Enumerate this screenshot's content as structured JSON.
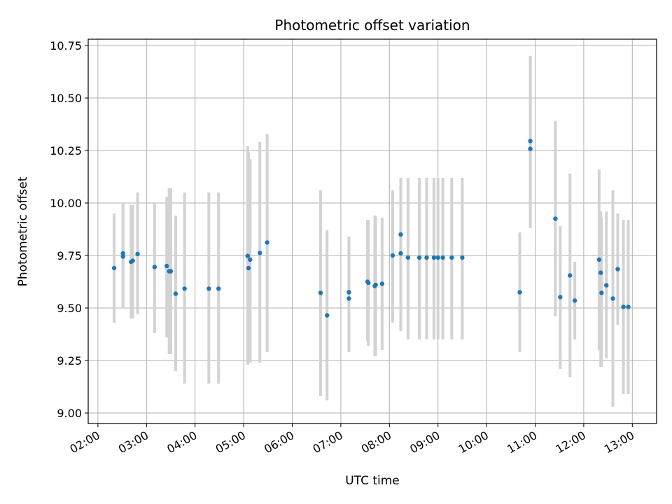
{
  "chart_data": {
    "type": "scatter",
    "title": "Photometric offset variation",
    "xlabel": "UTC time",
    "ylabel": "Photometric offset",
    "xlim": [
      "01:48",
      "13:30"
    ],
    "ylim": [
      8.95,
      10.78
    ],
    "x_ticks": [
      "02:00",
      "03:00",
      "04:00",
      "05:00",
      "06:00",
      "07:00",
      "08:00",
      "09:00",
      "10:00",
      "11:00",
      "12:00",
      "13:00"
    ],
    "y_ticks": [
      "9.00",
      "9.25",
      "9.50",
      "9.75",
      "10.00",
      "10.25",
      "10.50",
      "10.75"
    ],
    "grid": true,
    "legend": "none",
    "colors": {
      "points": "#1f77b4",
      "error_bars": "#d3d3d3",
      "grid": "#b0b0b0"
    },
    "series": [
      {
        "x": [
          "02:20",
          "02:31",
          "02:31",
          "02:41",
          "02:43",
          "02:49",
          "03:10",
          "03:25",
          "03:28",
          "03:30",
          "03:36",
          "03:47",
          "04:17",
          "04:29",
          "05:05",
          "05:06",
          "05:08",
          "05:20",
          "05:29",
          "06:35",
          "06:43",
          "07:10",
          "07:10",
          "07:33",
          "07:34",
          "07:42",
          "07:43",
          "07:51",
          "08:04",
          "08:14",
          "08:14",
          "08:23",
          "08:37",
          "08:46",
          "08:55",
          "09:00",
          "09:06",
          "09:17",
          "09:30",
          "10:41",
          "10:54",
          "10:54",
          "11:25",
          "11:31",
          "11:43",
          "11:49",
          "12:19",
          "12:21",
          "12:22",
          "12:28",
          "12:36",
          "12:42",
          "12:49",
          "12:55"
        ],
        "y": [
          9.69,
          9.745,
          9.76,
          9.72,
          9.725,
          9.757,
          9.695,
          9.7,
          9.675,
          9.675,
          9.568,
          9.592,
          9.592,
          9.592,
          9.748,
          9.69,
          9.73,
          9.762,
          9.812,
          9.572,
          9.465,
          9.575,
          9.545,
          9.625,
          9.62,
          9.605,
          9.61,
          9.615,
          9.75,
          9.85,
          9.76,
          9.74,
          9.74,
          9.74,
          9.74,
          9.74,
          9.74,
          9.74,
          9.74,
          9.575,
          10.295,
          10.258,
          9.925,
          9.552,
          9.655,
          9.535,
          9.73,
          9.668,
          9.572,
          9.608,
          9.545,
          9.685,
          9.505,
          9.505
        ],
        "err_low": [
          9.43,
          9.5,
          9.5,
          9.45,
          9.45,
          9.47,
          9.38,
          9.36,
          9.28,
          9.28,
          9.2,
          9.14,
          9.14,
          9.14,
          9.23,
          9.24,
          9.24,
          9.24,
          9.29,
          9.08,
          9.06,
          9.29,
          9.29,
          9.34,
          9.32,
          9.27,
          9.27,
          9.3,
          9.43,
          9.39,
          9.39,
          9.35,
          9.35,
          9.35,
          9.35,
          9.35,
          9.35,
          9.35,
          9.35,
          9.29,
          9.88,
          9.88,
          9.46,
          9.21,
          9.17,
          9.35,
          9.3,
          9.22,
          9.22,
          9.26,
          9.03,
          9.42,
          9.09,
          9.09
        ],
        "err_high": [
          9.95,
          10.0,
          10.0,
          9.99,
          9.99,
          10.05,
          10.0,
          10.03,
          10.07,
          10.07,
          9.94,
          10.05,
          10.05,
          10.05,
          10.27,
          10.24,
          10.21,
          10.29,
          10.33,
          10.06,
          9.87,
          9.84,
          9.84,
          9.92,
          9.92,
          9.94,
          9.94,
          9.93,
          10.06,
          10.11,
          10.12,
          10.12,
          10.12,
          10.12,
          10.12,
          10.12,
          10.12,
          10.12,
          10.12,
          9.86,
          10.7,
          10.7,
          10.39,
          9.89,
          10.14,
          9.72,
          10.16,
          9.96,
          9.93,
          9.96,
          10.06,
          9.95,
          9.92,
          9.92
        ]
      }
    ]
  }
}
